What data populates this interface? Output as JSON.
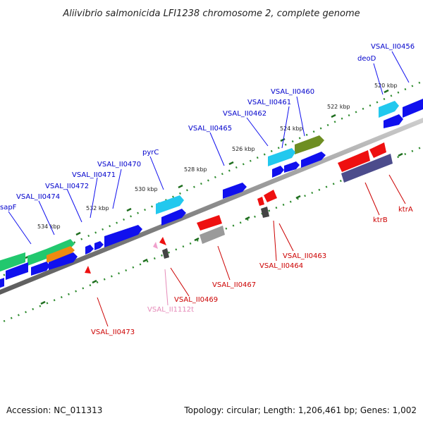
{
  "map": {
    "title": "Aliivibrio salmonicida LFI1238 chromosome 2, complete genome",
    "accession": "Accession: NC_011313",
    "summary": "Topology: circular; Length: 1,206,461 bp; Genes: 1,002"
  },
  "scale": {
    "ticks": [
      "520 kbp",
      "522 kbp",
      "524 kbp",
      "526 kbp",
      "528 kbp",
      "530 kbp",
      "532 kbp",
      "534 kbp"
    ]
  },
  "colors": {
    "backbone": "#8a8a8a",
    "dots": "#2e8b2e",
    "forward_label": "#0000cc",
    "reverse_label": "#cc0000",
    "rna_label": "#e58ab8",
    "blue": "#1010ee",
    "cyan": "#22c8ee",
    "olive": "#6e8e22",
    "green": "#22c86e",
    "orange": "#ee8a10",
    "red": "#ee1010",
    "purple": "#4c4c8c",
    "grey": "#9a9a9a",
    "dark": "#444444",
    "pink": "#f0a0cc"
  },
  "labels": {
    "forward": [
      "VSAL_II0456",
      "deoD",
      "VSAL_II0460",
      "VSAL_II0461",
      "VSAL_II0462",
      "VSAL_II0465",
      "pyrC",
      "VSAL_II0470",
      "VSAL_II0471",
      "VSAL_II0472",
      "VSAL_II0474",
      "sapF"
    ],
    "reverse": [
      "ktrA",
      "ktrB",
      "VSAL_II0463",
      "VSAL_II0464",
      "VSAL_II0467",
      "VSAL_II0469",
      "VSAL_II1112t",
      "VSAL_II0473"
    ]
  }
}
